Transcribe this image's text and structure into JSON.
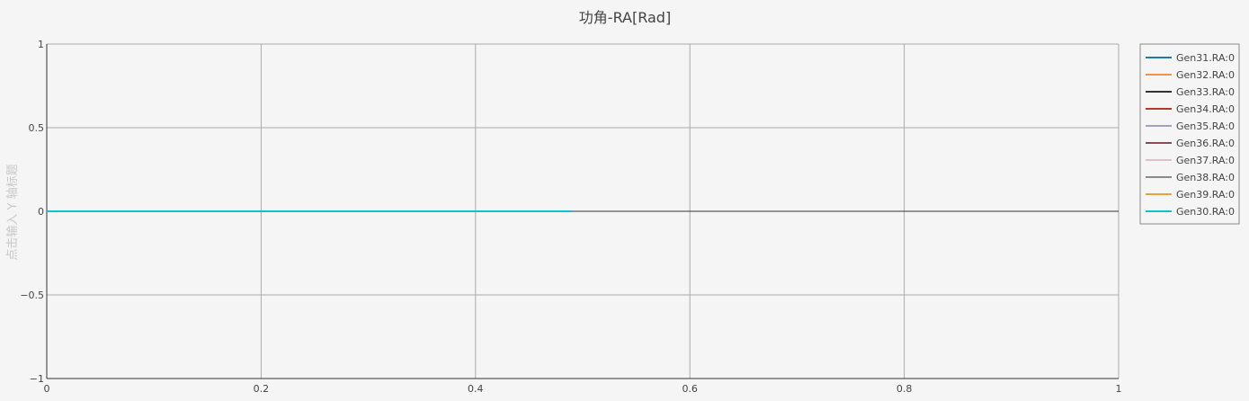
{
  "chart_data": {
    "type": "line",
    "title": "功角-RA[Rad]",
    "xlabel": "",
    "ylabel": "点击输入 Y 轴标题",
    "xlim": [
      0,
      1
    ],
    "ylim": [
      -1,
      1
    ],
    "x_ticks": [
      0,
      0.2,
      0.4,
      0.6,
      0.8,
      1
    ],
    "x_tick_labels": [
      "0",
      "0.2",
      "0.4",
      "0.6",
      "0.8",
      "1"
    ],
    "y_ticks": [
      -1,
      -0.5,
      0,
      0.5,
      1
    ],
    "y_tick_labels": [
      "−1",
      "−0.5",
      "0",
      "0.5",
      "1"
    ],
    "grid": true,
    "legend_position": "top-right",
    "series": [
      {
        "name": "Gen31.RA:0",
        "color": "#1f77b4",
        "x": [
          0,
          0.49
        ],
        "y": [
          0,
          0
        ]
      },
      {
        "name": "Gen32.RA:0",
        "color": "#e8974a",
        "x": [
          0,
          0.49
        ],
        "y": [
          0,
          0
        ]
      },
      {
        "name": "Gen33.RA:0",
        "color": "#333333",
        "x": [
          0,
          0.49
        ],
        "y": [
          0,
          0
        ]
      },
      {
        "name": "Gen34.RA:0",
        "color": "#b03a2e",
        "x": [
          0,
          0.49
        ],
        "y": [
          0,
          0
        ]
      },
      {
        "name": "Gen35.RA:0",
        "color": "#a59ec4",
        "x": [
          0,
          0.49
        ],
        "y": [
          0,
          0
        ]
      },
      {
        "name": "Gen36.RA:0",
        "color": "#8c4a52",
        "x": [
          0,
          0.49
        ],
        "y": [
          0,
          0
        ]
      },
      {
        "name": "Gen37.RA:0",
        "color": "#dcc2c8",
        "x": [
          0,
          0.49
        ],
        "y": [
          0,
          0
        ]
      },
      {
        "name": "Gen38.RA:0",
        "color": "#8a8a8a",
        "x": [
          0,
          0.49
        ],
        "y": [
          0,
          0
        ]
      },
      {
        "name": "Gen39.RA:0",
        "color": "#e8a040",
        "x": [
          0,
          0.49
        ],
        "y": [
          0,
          0
        ]
      },
      {
        "name": "Gen30.RA:0",
        "color": "#17becf",
        "x": [
          0,
          0.49
        ],
        "y": [
          0,
          0
        ]
      }
    ]
  }
}
